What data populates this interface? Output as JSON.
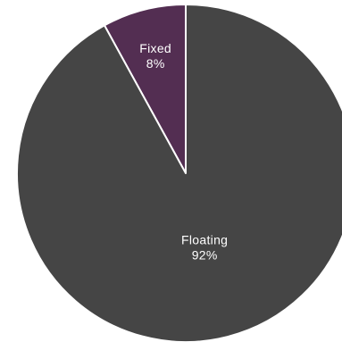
{
  "chart_data": {
    "type": "pie",
    "title": "",
    "slices": [
      {
        "label": "Fixed",
        "value": 8,
        "value_label": "8%",
        "color": "#532e52"
      },
      {
        "label": "Floating",
        "value": 92,
        "value_label": "92%",
        "color": "#454545"
      }
    ],
    "start_angle": "12 o'clock",
    "direction": "counter-clockwise",
    "slice_border_color": "#ffffff",
    "legend": "none"
  }
}
